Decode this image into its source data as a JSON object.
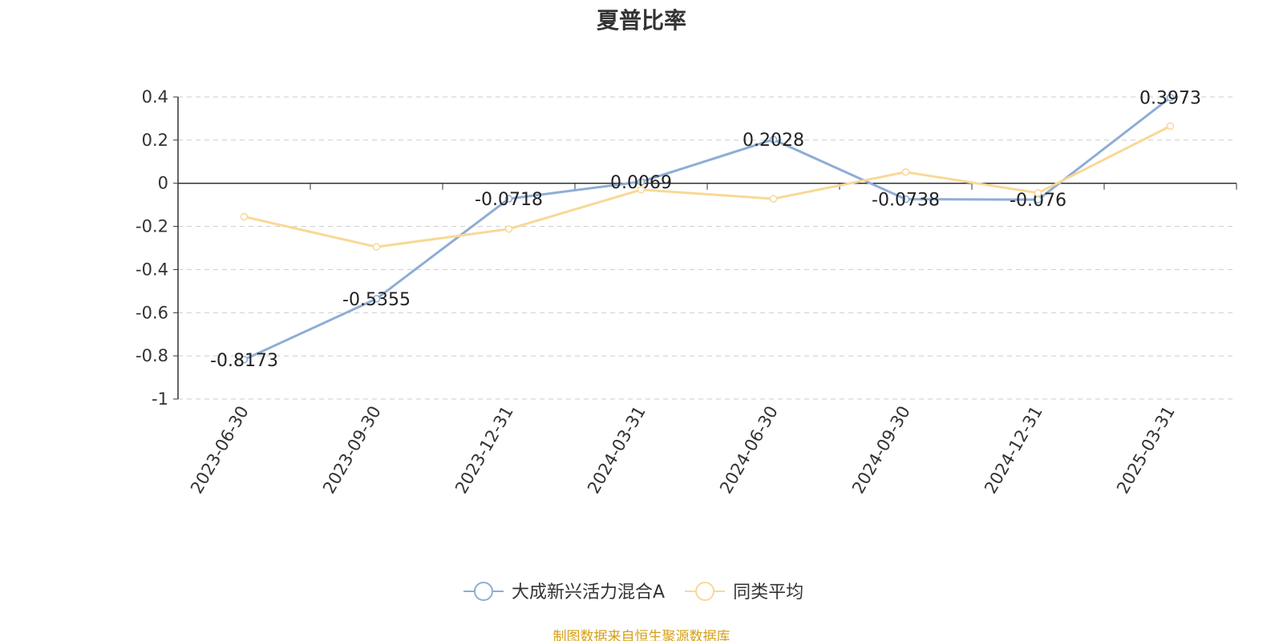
{
  "title": "夏普比率",
  "source_note": "制图数据来自恒生聚源数据库",
  "chart_data": {
    "type": "line",
    "title": "夏普比率",
    "categories": [
      "2023-06-30",
      "2023-09-30",
      "2023-12-31",
      "2024-03-31",
      "2024-06-30",
      "2024-09-30",
      "2024-12-31",
      "2025-03-31"
    ],
    "ylim": [
      -1,
      0.4
    ],
    "yticks": [
      0.4,
      0.2,
      0,
      -0.2,
      -0.4,
      -0.6,
      -0.8,
      -1
    ],
    "grid": true,
    "legend_position": "bottom-center",
    "series": [
      {
        "name": "大成新兴活力混合A",
        "color": "#8eadd6",
        "values": [
          -0.8173,
          -0.5355,
          -0.0718,
          0.0069,
          0.2028,
          -0.0738,
          -0.076,
          0.3973
        ],
        "labels": [
          "-0.8173",
          "-0.5355",
          "-0.0718",
          "0.0069",
          "0.2028",
          "-0.0738",
          "-0.076",
          "0.3973"
        ]
      },
      {
        "name": "同类平均",
        "color": "#f9d896",
        "values": [
          -0.155,
          -0.295,
          -0.212,
          -0.03,
          -0.072,
          0.052,
          -0.045,
          0.265
        ]
      }
    ]
  }
}
